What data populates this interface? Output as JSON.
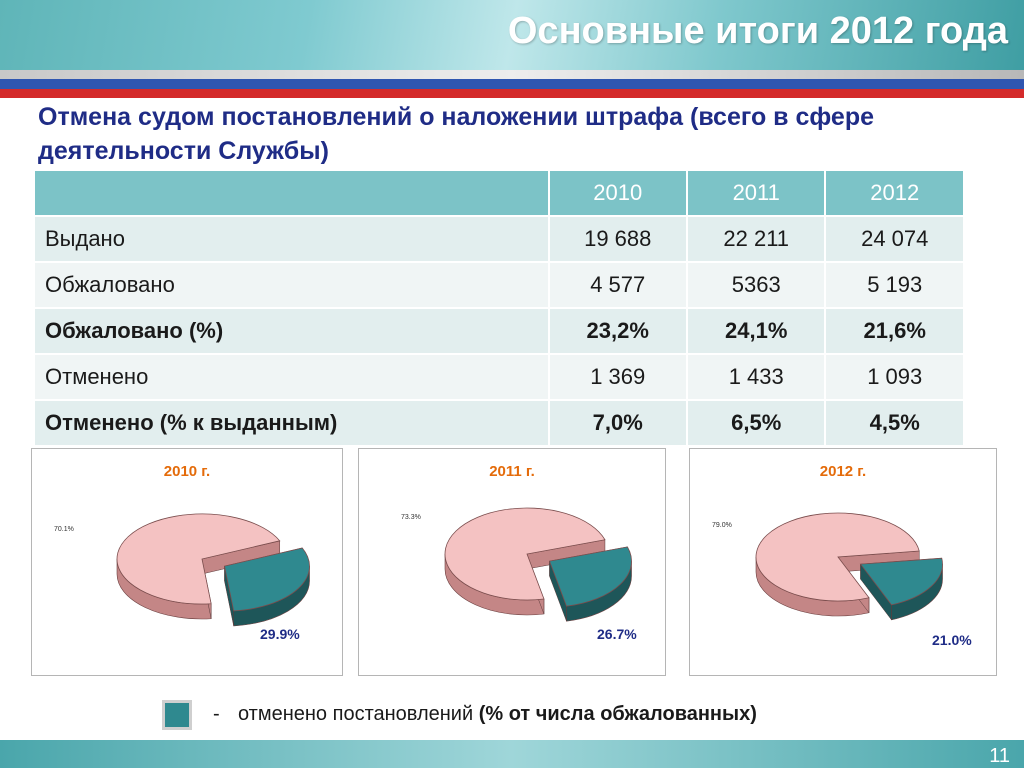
{
  "header": {
    "title": "Основные итоги 2012 года"
  },
  "subtitle": "Отмена судом постановлений о наложении штрафа (всего в сфере деятельности Службы)",
  "table": {
    "columns": [
      "",
      "2010",
      "2011",
      "2012"
    ],
    "rows": [
      {
        "label": "Выдано",
        "values": [
          "19 688",
          "22 211",
          "24 074"
        ],
        "bold": false
      },
      {
        "label": "Обжаловано",
        "values": [
          "4 577",
          "5363",
          "5 193"
        ],
        "bold": false
      },
      {
        "label": "Обжаловано (%)",
        "values": [
          "23,2%",
          "24,1%",
          "21,6%"
        ],
        "bold": true
      },
      {
        "label": "Отменено",
        "values": [
          "1 369",
          "1 433",
          "1 093"
        ],
        "bold": false
      },
      {
        "label": "Отменено (% к выданным)",
        "values": [
          "7,0%",
          "6,5%",
          "4,5%"
        ],
        "bold": true
      }
    ]
  },
  "chart_data": [
    {
      "type": "pie",
      "title": "2010 г.",
      "labels": [
        "70.1%",
        "29.9%"
      ],
      "values": [
        70.1,
        29.9
      ]
    },
    {
      "type": "pie",
      "title": "2011 г.",
      "labels": [
        "73.3%",
        "26.7%"
      ],
      "values": [
        73.3,
        26.7
      ]
    },
    {
      "type": "pie",
      "title": "2012 г.",
      "labels": [
        "79.0%",
        "21.0%"
      ],
      "values": [
        79.0,
        21.0
      ]
    }
  ],
  "legend": {
    "dash": "-",
    "text_normal": "отменено постановлений",
    "text_bold": "(% от числа обжалованных)"
  },
  "colors": {
    "main_slice": "#f4c2c2",
    "main_side": "#c48686",
    "exploded_slice": "#2f898f",
    "exploded_side": "#1e5659",
    "title_orange": "#e46b0a",
    "label_blue": "#1f2c86"
  },
  "page_number": "11"
}
